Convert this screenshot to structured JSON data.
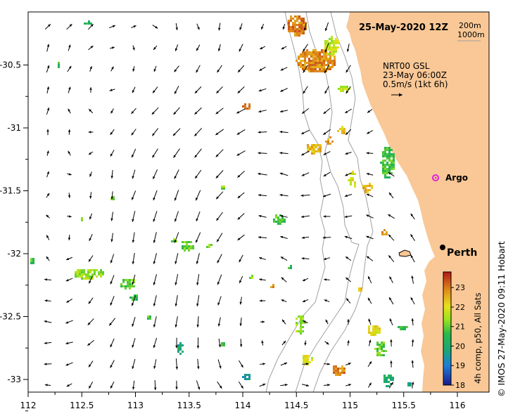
{
  "title": "25-May-2020 12Z",
  "contours": [
    "200m",
    "1000m"
  ],
  "product": {
    "line1": "NRT00 GSL",
    "line2": "23-May 06:00Z",
    "line3": "0.5m/s (1kt 6h)"
  },
  "places": {
    "argo": "Argo",
    "city": "Perth"
  },
  "colorbar": {
    "label": "4h comp, p50, All Sats",
    "ticks": [
      "23",
      "22",
      "21",
      "20",
      "19",
      "18"
    ]
  },
  "credit": "© IMOS 27-May-2020 09:11 Hobart",
  "colors": {
    "land": "#f9c896",
    "arrow": "#000000",
    "contour": "#a0a0a0",
    "argo": "#e020e0",
    "city": "#000000"
  },
  "chart_data": {
    "type": "map",
    "x_ticks": [
      "112",
      "112.5",
      "113",
      "113.5",
      "114",
      "114.5",
      "115",
      "115.5",
      "116"
    ],
    "y_ticks": [
      "-30.5",
      "-31",
      "-31.5",
      "-32",
      "-32.5",
      "-33"
    ],
    "lon_range": [
      112,
      116.3
    ],
    "lat_range": [
      -30.05,
      -33.1
    ],
    "argo": {
      "lon": 115.86,
      "lat": -31.5
    },
    "perth": {
      "lon": 115.86,
      "lat": -31.95
    },
    "sst_range": [
      18,
      23.8
    ]
  }
}
